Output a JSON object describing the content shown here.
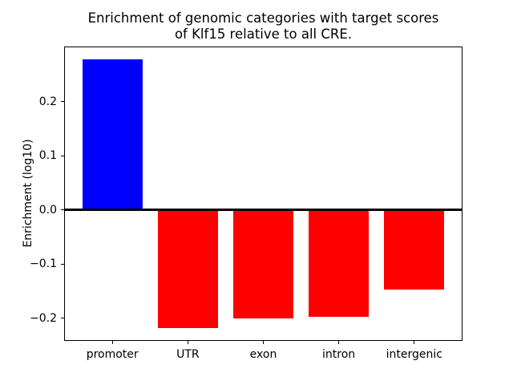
{
  "chart_data": {
    "type": "bar",
    "title": "Enrichment of genomic categories with target scores\nof Klf15 relative to all CRE.",
    "title_line1": "Enrichment of genomic categories with target scores",
    "title_line2": "of Klf15 relative to all CRE.",
    "xlabel": "",
    "ylabel": "Enrichment (log10)",
    "categories": [
      "promoter",
      "UTR",
      "exon",
      "intron",
      "intergenic"
    ],
    "values": [
      0.278,
      -0.219,
      -0.201,
      -0.198,
      -0.147
    ],
    "colors": [
      "#0000ff",
      "#ff0000",
      "#ff0000",
      "#ff0000",
      "#ff0000"
    ],
    "positive_color": "#0000ff",
    "negative_color": "#ff0000",
    "yticks": [
      0.2,
      0.1,
      0.0,
      -0.1,
      -0.2
    ],
    "ytick_labels": [
      "0.2",
      "0.1",
      "0.0",
      "−0.1",
      "−0.2"
    ],
    "ylim": [
      -0.242,
      0.302
    ],
    "bar_width_fraction": 0.8,
    "zero_line": true,
    "grid": false,
    "legend": null,
    "background": "#ffffff",
    "axis_color": "#000000"
  }
}
